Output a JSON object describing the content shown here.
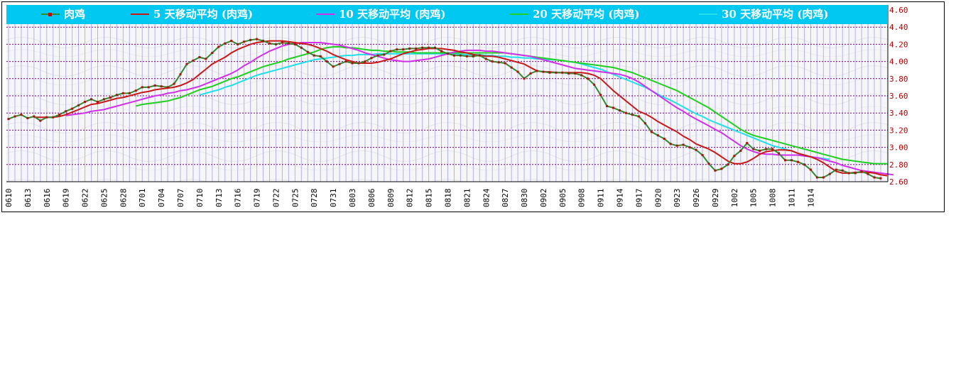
{
  "chart_data": {
    "type": "line",
    "legend": [
      {
        "label": "肉鸡",
        "color": "#2e8b2e",
        "marker": true
      },
      {
        "label": "5 天移动平均 (肉鸡)",
        "color": "#c81818"
      },
      {
        "label": "10 天移动平均 (肉鸡)",
        "color": "#d030e8"
      },
      {
        "label": "20 天移动平均 (肉鸡)",
        "color": "#20d020"
      },
      {
        "label": "30 天移动平均 (肉鸡)",
        "color": "#20e0e8"
      }
    ],
    "x_tick_labels": [
      "0610",
      "0613",
      "0616",
      "0619",
      "0622",
      "0625",
      "0628",
      "0701",
      "0704",
      "0707",
      "0710",
      "0713",
      "0716",
      "0719",
      "0722",
      "0725",
      "0728",
      "0731",
      "0803",
      "0806",
      "0809",
      "0812",
      "0815",
      "0818",
      "0821",
      "0824",
      "0827",
      "0830",
      "0902",
      "0905",
      "0908",
      "0911",
      "0914",
      "0917",
      "0920",
      "0923",
      "0926",
      "0929",
      "1002",
      "1005",
      "1008",
      "1011",
      "1014"
    ],
    "y_tick_labels": [
      "4.60",
      "4.40",
      "4.20",
      "4.00",
      "3.80",
      "3.60",
      "3.40",
      "3.20",
      "3.00",
      "2.80",
      "2.60"
    ],
    "ylim": [
      2.6,
      4.6
    ],
    "grid": true,
    "series": [
      {
        "name": "肉鸡",
        "color": "#2e8b2e",
        "x_start": 0,
        "values": [
          3.33,
          3.36,
          3.38,
          3.34,
          3.36,
          3.31,
          3.35,
          3.35,
          3.38,
          3.42,
          3.45,
          3.49,
          3.53,
          3.56,
          3.53,
          3.56,
          3.58,
          3.61,
          3.63,
          3.63,
          3.66,
          3.7,
          3.7,
          3.72,
          3.71,
          3.7,
          3.74,
          3.85,
          3.97,
          4.01,
          4.05,
          4.03,
          4.1,
          4.17,
          4.21,
          4.24,
          4.2,
          4.23,
          4.25,
          4.26,
          4.24,
          4.21,
          4.2,
          4.22,
          4.21,
          4.2,
          4.16,
          4.11,
          4.07,
          4.06,
          4.0,
          3.94,
          3.97,
          4.0,
          3.98,
          3.98,
          4.0,
          4.04,
          4.07,
          4.08,
          4.12,
          4.14,
          4.14,
          4.15,
          4.15,
          4.16,
          4.16,
          4.16,
          4.12,
          4.09,
          4.07,
          4.07,
          4.06,
          4.06,
          4.07,
          4.03,
          4.0,
          3.99,
          3.98,
          3.93,
          3.88,
          3.8,
          3.86,
          3.89,
          3.88,
          3.87,
          3.87,
          3.87,
          3.86,
          3.86,
          3.84,
          3.8,
          3.73,
          3.61,
          3.48,
          3.46,
          3.43,
          3.4,
          3.38,
          3.36,
          3.28,
          3.18,
          3.14,
          3.1,
          3.04,
          3.02,
          3.03,
          3.0,
          2.97,
          2.91,
          2.81,
          2.73,
          2.75,
          2.8,
          2.9,
          2.96,
          3.05,
          2.98,
          2.96,
          2.98,
          2.98,
          2.93,
          2.85,
          2.85,
          2.83,
          2.8,
          2.74,
          2.65,
          2.65,
          2.69,
          2.74,
          2.73,
          2.7,
          2.7,
          2.72,
          2.69,
          2.65,
          2.64
        ]
      },
      {
        "name": "5 天移动平均 (肉鸡)",
        "color": "#c81818",
        "x_start": 4,
        "values": [
          3.35,
          3.35,
          3.35,
          3.35,
          3.36,
          3.38,
          3.41,
          3.44,
          3.47,
          3.5,
          3.51,
          3.53,
          3.55,
          3.57,
          3.58,
          3.6,
          3.62,
          3.64,
          3.65,
          3.67,
          3.68,
          3.69,
          3.7,
          3.72,
          3.75,
          3.79,
          3.85,
          3.91,
          3.97,
          4.01,
          4.05,
          4.1,
          4.14,
          4.17,
          4.2,
          4.22,
          4.23,
          4.24,
          4.24,
          4.24,
          4.23,
          4.22,
          4.21,
          4.2,
          4.18,
          4.15,
          4.12,
          4.08,
          4.05,
          4.02,
          4.0,
          3.98,
          3.98,
          3.98,
          3.99,
          4.01,
          4.03,
          4.06,
          4.09,
          4.11,
          4.13,
          4.14,
          4.15,
          4.15,
          4.15,
          4.14,
          4.13,
          4.11,
          4.1,
          4.08,
          4.07,
          4.06,
          4.06,
          4.05,
          4.03,
          4.01,
          3.99,
          3.97,
          3.93,
          3.89,
          3.88,
          3.88,
          3.87,
          3.87,
          3.87,
          3.87,
          3.87,
          3.86,
          3.84,
          3.8,
          3.73,
          3.66,
          3.6,
          3.54,
          3.48,
          3.42,
          3.39,
          3.35,
          3.3,
          3.26,
          3.22,
          3.18,
          3.13,
          3.09,
          3.04,
          3.01,
          2.98,
          2.94,
          2.89,
          2.84,
          2.81,
          2.81,
          2.83,
          2.87,
          2.92,
          2.95,
          2.96,
          2.97,
          2.97,
          2.96,
          2.93,
          2.91,
          2.89,
          2.86,
          2.82,
          2.77,
          2.72,
          2.7,
          2.7,
          2.71,
          2.71,
          2.71,
          2.7,
          2.68,
          2.67
        ]
      },
      {
        "name": "10 天移动平均 (肉鸡)",
        "color": "#d030e8",
        "x_start": 9,
        "values": [
          3.37,
          3.38,
          3.39,
          3.4,
          3.42,
          3.43,
          3.44,
          3.46,
          3.48,
          3.5,
          3.52,
          3.54,
          3.56,
          3.58,
          3.6,
          3.61,
          3.63,
          3.64,
          3.66,
          3.67,
          3.69,
          3.71,
          3.74,
          3.77,
          3.8,
          3.83,
          3.86,
          3.9,
          3.95,
          3.99,
          4.04,
          4.08,
          4.12,
          4.15,
          4.18,
          4.2,
          4.21,
          4.22,
          4.22,
          4.22,
          4.22,
          4.21,
          4.2,
          4.19,
          4.17,
          4.15,
          4.13,
          4.1,
          4.08,
          4.06,
          4.04,
          4.02,
          4.01,
          4.0,
          4.0,
          4.01,
          4.02,
          4.03,
          4.05,
          4.07,
          4.09,
          4.11,
          4.12,
          4.13,
          4.13,
          4.13,
          4.12,
          4.12,
          4.11,
          4.1,
          4.09,
          4.08,
          4.07,
          4.06,
          4.04,
          4.02,
          4.0,
          3.98,
          3.96,
          3.94,
          3.92,
          3.91,
          3.9,
          3.89,
          3.88,
          3.87,
          3.86,
          3.85,
          3.83,
          3.8,
          3.76,
          3.71,
          3.66,
          3.61,
          3.56,
          3.51,
          3.46,
          3.42,
          3.37,
          3.33,
          3.29,
          3.25,
          3.21,
          3.17,
          3.12,
          3.07,
          3.02,
          2.98,
          2.95,
          2.93,
          2.92,
          2.92,
          2.91,
          2.91,
          2.91,
          2.91,
          2.9,
          2.89,
          2.88,
          2.86,
          2.84,
          2.82,
          2.79,
          2.77,
          2.75,
          2.73,
          2.72,
          2.71,
          2.7,
          2.69,
          2.68
        ]
      },
      {
        "name": "20 天移动平均 (肉鸡)",
        "color": "#20d020",
        "x_start": 20,
        "values": [
          3.48,
          3.5,
          3.51,
          3.52,
          3.53,
          3.54,
          3.56,
          3.58,
          3.61,
          3.64,
          3.67,
          3.69,
          3.71,
          3.74,
          3.77,
          3.8,
          3.82,
          3.85,
          3.88,
          3.91,
          3.94,
          3.96,
          3.98,
          4.0,
          4.03,
          4.05,
          4.07,
          4.09,
          4.11,
          4.14,
          4.16,
          4.17,
          4.17,
          4.16,
          4.16,
          4.15,
          4.14,
          4.13,
          4.13,
          4.12,
          4.12,
          4.11,
          4.11,
          4.11,
          4.1,
          4.1,
          4.1,
          4.1,
          4.1,
          4.1,
          4.1,
          4.1,
          4.1,
          4.1,
          4.1,
          4.1,
          4.1,
          4.1,
          4.1,
          4.09,
          4.08,
          4.07,
          4.06,
          4.05,
          4.04,
          4.03,
          4.02,
          4.01,
          4.0,
          3.99,
          3.98,
          3.97,
          3.96,
          3.95,
          3.94,
          3.93,
          3.91,
          3.89,
          3.87,
          3.84,
          3.81,
          3.78,
          3.75,
          3.72,
          3.69,
          3.66,
          3.62,
          3.58,
          3.54,
          3.5,
          3.46,
          3.41,
          3.36,
          3.31,
          3.26,
          3.21,
          3.17,
          3.14,
          3.12,
          3.1,
          3.08,
          3.06,
          3.04,
          3.02,
          3.0,
          2.98,
          2.96,
          2.94,
          2.92,
          2.9,
          2.88,
          2.86,
          2.85,
          2.84,
          2.83,
          2.82,
          2.81,
          2.81,
          2.81
        ]
      },
      {
        "name": "30 天移动平均 (肉鸡)",
        "color": "#20e0e8",
        "x_start": 30,
        "values": [
          3.61,
          3.63,
          3.65,
          3.67,
          3.7,
          3.72,
          3.75,
          3.78,
          3.81,
          3.84,
          3.86,
          3.88,
          3.9,
          3.92,
          3.94,
          3.96,
          3.98,
          4.0,
          4.02,
          4.03,
          4.04,
          4.05,
          4.06,
          4.07,
          4.07,
          4.08,
          4.08,
          4.08,
          4.09,
          4.09,
          4.09,
          4.09,
          4.09,
          4.09,
          4.09,
          4.09,
          4.09,
          4.09,
          4.09,
          4.09,
          4.09,
          4.08,
          4.08,
          4.08,
          4.08,
          4.07,
          4.07,
          4.06,
          4.06,
          4.05,
          4.05,
          4.04,
          4.04,
          4.03,
          4.03,
          4.02,
          4.02,
          4.01,
          4.0,
          3.99,
          3.97,
          3.95,
          3.93,
          3.91,
          3.88,
          3.85,
          3.82,
          3.79,
          3.76,
          3.73,
          3.7,
          3.66,
          3.62,
          3.58,
          3.55,
          3.51,
          3.47,
          3.43,
          3.39,
          3.36,
          3.32,
          3.29,
          3.26,
          3.23,
          3.2,
          3.17,
          3.14,
          3.11,
          3.08,
          3.05,
          3.02,
          3.0,
          2.98,
          2.96,
          2.93,
          2.91,
          2.89,
          2.88,
          2.87,
          2.86
        ]
      }
    ]
  }
}
